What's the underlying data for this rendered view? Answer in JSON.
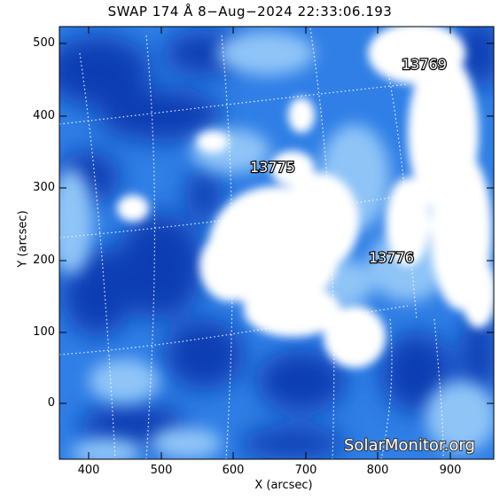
{
  "title": "SWAP 174 Å  8−Aug−2024 22:33:06.193",
  "xlabel": "X (arcsec)",
  "ylabel": "Y (arcsec)",
  "x_ticks": [
    "400",
    "500",
    "600",
    "700",
    "800",
    "900"
  ],
  "y_ticks": [
    "500",
    "400",
    "300",
    "200",
    "100",
    "0"
  ],
  "regions": [
    "13769",
    "13775",
    "13776"
  ],
  "watermark": "SolarMonitor.org",
  "colors": {
    "deep_blue": "#0a3fb8",
    "mid_blue": "#2f7fe6",
    "light_blue": "#8fc4f7",
    "white": "#ffffff"
  }
}
